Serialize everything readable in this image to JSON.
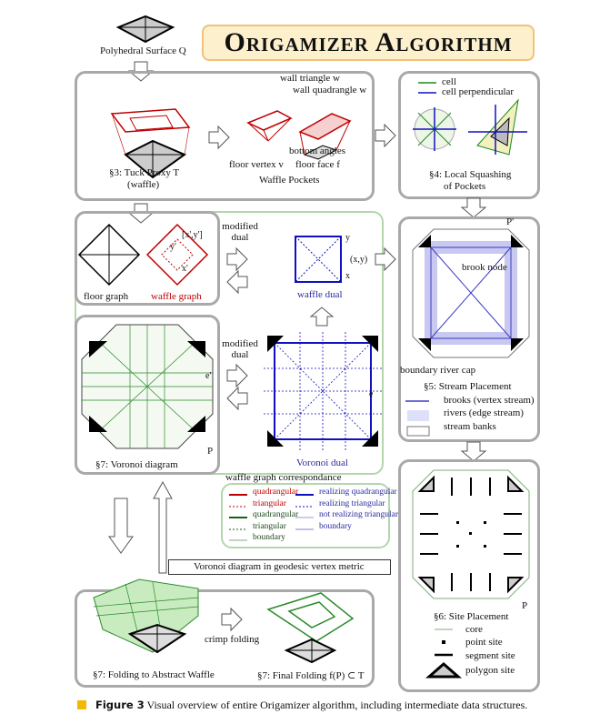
{
  "title": "Origamizer Algorithm",
  "input": {
    "label": "Polyhedral Surface Q"
  },
  "tuck_proxy": {
    "label_line1": "§3: Tuck Proxy T",
    "label_line2": "(waffle)"
  },
  "waffle_pockets": {
    "title": "Waffle Pockets",
    "wall_triangle": "wall triangle w",
    "wall_quadrangle": "wall quadrangle w",
    "bottom_angles": "bottom angles",
    "floor_vertex": "floor vertex v",
    "floor_face": "floor face f"
  },
  "local_squashing": {
    "title_line1": "§4: Local Squashing",
    "title_line2": "of Pockets",
    "legend": [
      "cell",
      "cell perpendicular"
    ]
  },
  "graphs": {
    "floor_graph": "floor graph",
    "waffle_graph": "waffle graph",
    "coord_label": "[x',y']",
    "y_prime": "y'",
    "x_prime": "x'",
    "modified_dual_1": "modified dual",
    "waffle_dual": "waffle dual",
    "xy_label": "(x,y)",
    "y": "y",
    "x": "x",
    "modified_dual_2": "modified dual"
  },
  "voronoi": {
    "title": "§7: Voronoi diagram",
    "e_prime": "e'",
    "P": "P",
    "voronoi_dual": "Voronoi dual",
    "e": "e"
  },
  "stream": {
    "title": "§5: Stream Placement",
    "P_prime": "P'",
    "brook_node": "brook node",
    "boundary_river_cap": "boundary river cap",
    "legend": [
      "brooks (vertex stream)",
      "rivers (edge stream)",
      "stream banks"
    ]
  },
  "site": {
    "title": "§6: Site Placement",
    "P": "P",
    "legend": [
      "core",
      "point site",
      "segment site",
      "polygon site"
    ]
  },
  "correspondence": {
    "title": "waffle graph correspondance",
    "left": [
      {
        "label": "quadrangular",
        "color": "#c00000",
        "style": "solid"
      },
      {
        "label": "triangular",
        "color": "#c00000",
        "style": "dotted"
      },
      {
        "label": "quadrangular",
        "color": "#1a5e1a",
        "style": "solid"
      },
      {
        "label": "triangular",
        "color": "#1a5e1a",
        "style": "dotted"
      },
      {
        "label": "boundary",
        "color": "#7fae7a",
        "style": "thin"
      }
    ],
    "right": [
      {
        "label": "realizing quadrangular",
        "color": "#1010c0",
        "style": "solid"
      },
      {
        "label": "realizing triangular",
        "color": "#1010c0",
        "style": "dotted"
      },
      {
        "label": "not realizing triangular",
        "color": "#9a9ad8",
        "style": "thin"
      },
      {
        "label": "boundary",
        "color": "#8080d0",
        "style": "thin"
      }
    ]
  },
  "metric_label": "Voronoi diagram in geodesic vertex metric",
  "folding": {
    "abstract": "§7: Folding to Abstract Waffle",
    "crimp": "crimp folding",
    "final": "§7: Final Folding  f(P) ⊂ T"
  },
  "caption": {
    "figure": "Figure 3",
    "text": "Visual overview of entire Origamizer algorithm, including intermediate data structures."
  },
  "colors": {
    "title_bg": "#fdf0cc",
    "title_border": "#f0c27a",
    "box_border": "#a9a9a9",
    "green_border": "#b3d6ad",
    "accent_square": "#f5b800"
  }
}
